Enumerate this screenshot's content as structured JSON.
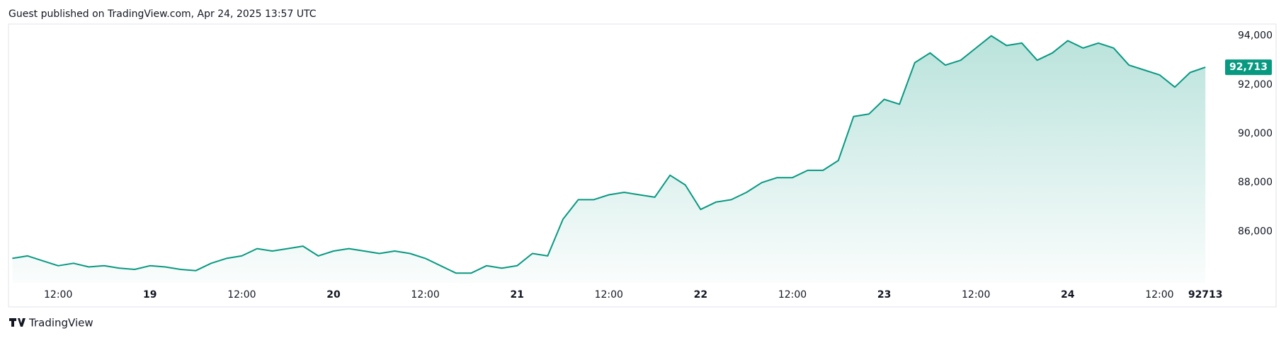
{
  "header": {
    "title": "Guest published on TradingView.com, Apr 24, 2025 13:57 UTC"
  },
  "footer": {
    "brand": "TradingView"
  },
  "chart_data": {
    "type": "area",
    "categories": [
      null,
      null,
      null,
      "12:00",
      null,
      null,
      null,
      null,
      null,
      "19",
      null,
      null,
      null,
      null,
      null,
      "12:00",
      null,
      null,
      null,
      null,
      null,
      "20",
      null,
      null,
      null,
      null,
      null,
      "12:00",
      null,
      null,
      null,
      null,
      null,
      "21",
      null,
      null,
      null,
      null,
      null,
      "12:00",
      null,
      null,
      null,
      null,
      null,
      "22",
      null,
      null,
      null,
      null,
      null,
      "12:00",
      null,
      null,
      null,
      null,
      null,
      "23",
      null,
      null,
      null,
      null,
      null,
      "12:00",
      null,
      null,
      null,
      null,
      null,
      "24",
      null,
      null,
      null,
      null,
      null,
      "12:00",
      null,
      null,
      92713
    ],
    "series": [
      {
        "color": "#089981",
        "values": [
          84900,
          85000,
          84800,
          84600,
          84700,
          84550,
          84600,
          84500,
          84450,
          84600,
          84550,
          84450,
          84400,
          84700,
          84900,
          85000,
          85300,
          85200,
          85300,
          85400,
          85000,
          85200,
          85300,
          85200,
          85100,
          85200,
          85100,
          84900,
          84600,
          84300,
          84300,
          84600,
          84500,
          84600,
          85100,
          85000,
          86500,
          87300,
          87300,
          87500,
          87600,
          87500,
          87400,
          88300,
          87900,
          86900,
          87200,
          87300,
          87600,
          88000,
          88200,
          88200,
          88500,
          88500,
          88900,
          90700,
          90800,
          91400,
          91200,
          92900,
          93300,
          92800,
          93000,
          93500,
          94000,
          93600,
          93700,
          93000,
          93300,
          93800,
          93500,
          93700,
          93500,
          92800,
          92600,
          92400,
          91900,
          92500,
          92713
        ],
        "value_labels": [
          null,
          null,
          null,
          null,
          null,
          null,
          null,
          null,
          null,
          null,
          null,
          null,
          null,
          null,
          null,
          null,
          null,
          null,
          null,
          null,
          null,
          null,
          null,
          null,
          null,
          null,
          null,
          null,
          null,
          null,
          null,
          null,
          null,
          null,
          null,
          null,
          null,
          null,
          null,
          null,
          null,
          null,
          null,
          null,
          null,
          null,
          null,
          null,
          null,
          null,
          null,
          null,
          null,
          null,
          null,
          null,
          null,
          null,
          null,
          null,
          null,
          null,
          null,
          null,
          null,
          null,
          null,
          null,
          null,
          null,
          null,
          null,
          null,
          null,
          null,
          null,
          null,
          null,
          "92,713"
        ]
      }
    ],
    "ylim": [
      83900,
      94450
    ],
    "yticks": [
      {
        "value": 86000,
        "label": "86,000"
      },
      {
        "value": 88000,
        "label": "88,000"
      },
      {
        "value": 90000,
        "label": "90,000"
      },
      {
        "value": 92000,
        "label": "92,000"
      },
      {
        "value": 94000,
        "label": "94,000"
      }
    ],
    "grid": false
  }
}
